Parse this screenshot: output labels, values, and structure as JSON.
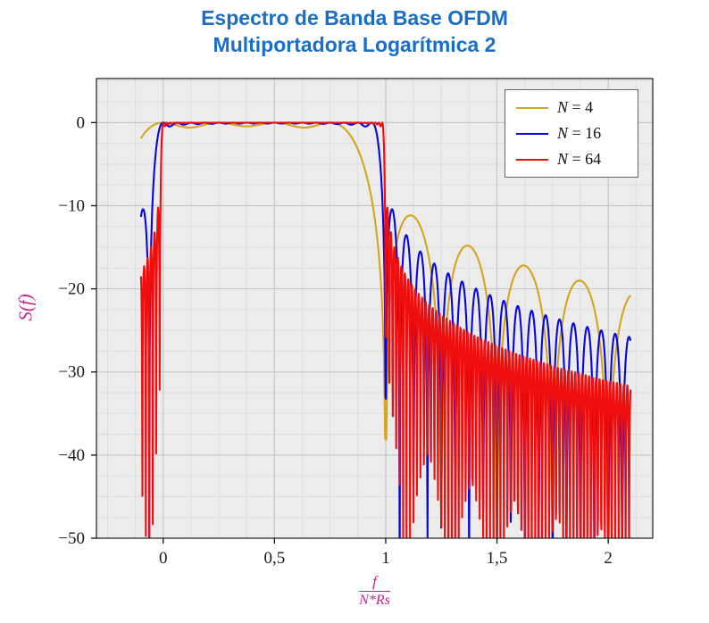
{
  "title": {
    "line1": "Espectro de Banda Base OFDM",
    "line2": "Multiportadora Logarítmica 2",
    "color": "#1a6ec7"
  },
  "chart_data": {
    "type": "line",
    "title": "Espectro de Banda Base OFDM Multiportadora Logarítmica 2",
    "xlabel": "f/(N*Rs)",
    "xlabel_numerator": "f",
    "xlabel_denominator": "N*Rs",
    "ylabel": "S(f)",
    "axis_label_color": "#c6268c",
    "xlim": [
      -0.3,
      2.2
    ],
    "ylim": [
      -50,
      5.3
    ],
    "x_ticks": [
      0,
      0.5,
      1,
      1.5,
      2
    ],
    "x_tick_labels": [
      "0",
      "0,5",
      "1",
      "1,5",
      "2"
    ],
    "y_ticks": [
      0,
      -10,
      -20,
      -30,
      -40,
      -50
    ],
    "y_tick_labels": [
      "0",
      "−10",
      "−20",
      "−30",
      "−40",
      "−50"
    ],
    "grid": "both",
    "minor_x_step": 0.125,
    "minor_y_step": 2.5,
    "plot_bg": "#ececec",
    "grid_minor_color": "#dddddd",
    "grid_major_color": "#c3c3c3",
    "frame_color": "#1a1a1a",
    "x_data_range": [
      -0.1,
      2.1
    ],
    "model": "S(u) = 10*log10( sum_{k=0..N-1} sinc^2(N*u - k) ), with u = f/(N*Rs); flat ~0 dB for 0<=u<=(N-1)/N, sidelobes spaced 1/N beyond",
    "legend_position": "top-right",
    "series": [
      {
        "label": "N = 4",
        "label_var": "N",
        "label_rest": "= 4",
        "N": 4,
        "color": "#d6a51d",
        "samples": 421
      },
      {
        "label": "N = 16",
        "label_var": "N",
        "label_rest": "= 16",
        "N": 16,
        "color": "#0606e0",
        "samples": 1001
      },
      {
        "label": "N = 64",
        "label_var": "N",
        "label_rest": "= 64",
        "N": 64,
        "color": "#ef0e0e",
        "samples": 1701
      }
    ]
  }
}
